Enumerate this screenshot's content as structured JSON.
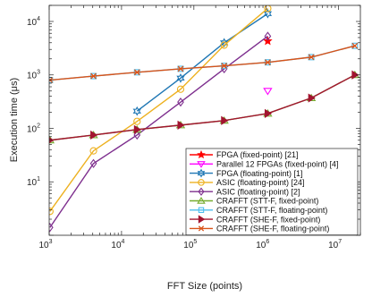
{
  "chart_data": {
    "type": "line",
    "xlabel": "FFT Size (points)",
    "ylabel": "Execution time (μs)",
    "xscale": "log",
    "yscale": "log",
    "xlim": [
      1000,
      20000000
    ],
    "ylim": [
      1,
      20000
    ],
    "xticks": [
      {
        "value": 1000,
        "base": "10",
        "exp": "3"
      },
      {
        "value": 10000,
        "base": "10",
        "exp": "4"
      },
      {
        "value": 100000,
        "base": "10",
        "exp": "5"
      },
      {
        "value": 1000000,
        "base": "10",
        "exp": "6"
      },
      {
        "value": 10000000,
        "base": "10",
        "exp": "7"
      }
    ],
    "yticks": [
      {
        "value": 10,
        "base": "10",
        "exp": "1"
      },
      {
        "value": 100,
        "base": "10",
        "exp": "2"
      },
      {
        "value": 1000,
        "base": "10",
        "exp": "3"
      },
      {
        "value": 10000,
        "base": "10",
        "exp": "4"
      }
    ],
    "grid": false,
    "legend_position": "bottom-right",
    "series": [
      {
        "name": "FPGA (fixed-point) [21]",
        "color": "#ff0000",
        "marker": "star",
        "x": [
          1048576
        ],
        "y": [
          4300
        ]
      },
      {
        "name": "Parallel 12 FPGAs (fixed-point) [4]",
        "color": "#ff00ff",
        "marker": "triangle-down",
        "x": [
          1048576
        ],
        "y": [
          500
        ]
      },
      {
        "name": "FPGA (floating-point) [1]",
        "color": "#1f77b4",
        "marker": "hexagram",
        "x": [
          16384,
          65536,
          262144,
          1048576
        ],
        "y": [
          210,
          870,
          4000,
          14000
        ]
      },
      {
        "name": "ASIC (floating-point) [24]",
        "color": "#edb120",
        "marker": "circle",
        "x": [
          1024,
          4096,
          16384,
          65536,
          262144,
          1048576
        ],
        "y": [
          2.8,
          38,
          135,
          540,
          3600,
          17500
        ]
      },
      {
        "name": "ASIC (floating-point) [2]",
        "color": "#7e2f8e",
        "marker": "diamond",
        "x": [
          1024,
          4096,
          16384,
          65536,
          262144,
          1048576
        ],
        "y": [
          1.4,
          22,
          75,
          310,
          1300,
          5300
        ]
      },
      {
        "name": "CRAFFT (STT-F, fixed-point)",
        "color": "#77ac30",
        "marker": "triangle-up",
        "x": [
          1024,
          4096,
          16384,
          65536,
          262144,
          1048576,
          4194304,
          16777216
        ],
        "y": [
          60,
          75,
          95,
          115,
          140,
          190,
          370,
          1000
        ]
      },
      {
        "name": "CRAFFT (STT-F, floating-point)",
        "color": "#4dbeee",
        "marker": "square",
        "x": [
          1024,
          4096,
          16384,
          65536,
          262144,
          1048576,
          4194304,
          16777216
        ],
        "y": [
          800,
          950,
          1120,
          1300,
          1480,
          1720,
          2150,
          3500
        ]
      },
      {
        "name": "CRAFFT (SHE-F, fixed-point)",
        "color": "#a2142f",
        "marker": "triangle-right",
        "x": [
          1024,
          4096,
          16384,
          65536,
          262144,
          1048576,
          4194304,
          16777216
        ],
        "y": [
          60,
          75,
          95,
          115,
          140,
          190,
          370,
          1000
        ]
      },
      {
        "name": "CRAFFT (SHE-F, floating-point)",
        "color": "#d95319",
        "marker": "x",
        "x": [
          1024,
          4096,
          16384,
          65536,
          262144,
          1048576,
          4194304,
          16777216
        ],
        "y": [
          800,
          950,
          1120,
          1300,
          1480,
          1720,
          2150,
          3500
        ]
      }
    ]
  }
}
